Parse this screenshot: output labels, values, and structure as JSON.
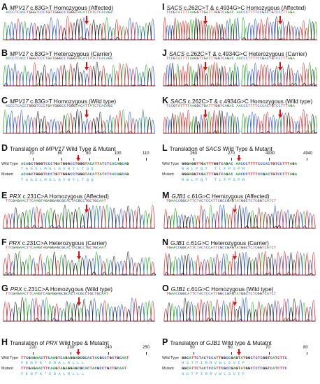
{
  "panels": [
    {
      "letter": "A",
      "gene": "MPV17",
      "rest": " c.83G>T Homozygous (Affected)",
      "seq": "ACCCTCACCTGGGTCCCTGTTGGGCCTGGGTACATTATCTCACAGC"
    },
    {
      "letter": "B",
      "gene": "MPV17",
      "rest": " c.83G>T Heterozygous (Carrier)",
      "seq": "ACCCTCACCTGGGTCCCTGATGGGCCTGGGTACATTATCTCACAGC"
    },
    {
      "letter": "C",
      "gene": "MPV17",
      "rest": " c.83G>T Homozygous (Wild type)",
      "seq": "ACCCTCACCTGGGTCCCTGATGGGCCTGGGTACATTATCTCACAGC"
    },
    {
      "letter": "E",
      "gene": "PRX",
      "rest": " c.231C>A Homozygous (Affected)",
      "seq": "TTCGAGAACTTCAAGTAGAGGAGCGCACTACGCCTGCTGCAAT"
    },
    {
      "letter": "F",
      "gene": "PRX",
      "rest": " c.231C>A  Heterozygous (Carrier)",
      "seq": "TTCGAGAACTTCAAGTAGAGGAGCGCACTACGCCTGCTGCAAT"
    },
    {
      "letter": "G",
      "gene": "PRX",
      "rest": " c.231C>A  Homozygous (Wild type)",
      "seq": "TTCGAGAACTTCAAGTCAGAGGAGCGCACTACGCCTGCTGCAAT"
    },
    {
      "letter": "I",
      "gene": "SACS",
      "rest": " c.262C>T & c.4934G>C Homozygous (Affected)",
      "seq": "TCCGTATTTTAAGGTTGATTTGGTCAGAC   AACCCTTTTCCGACTGTCCTTTAGA"
    },
    {
      "letter": "J",
      "gene": "SACS",
      "rest": " c.262C>T & c.4934G>C  Heterozygous (Carrier)",
      "seq": "TCCGTATTTTAAGGTTGATTTGGTCAGAC   AACCCTTTTCCGACTGTCCTTTAGA"
    },
    {
      "letter": "K",
      "gene": "SACS",
      "rest": " c.262C>T & c.4934G>C Homozygous (Wild type)",
      "seq": "TCCGTATTTTAAGGCTGATTTGGTCAGAC   AACCCTTTTCCCACTGTCCTTTAGA"
    },
    {
      "letter": "M",
      "gene": "GJB1",
      "rest": " c.61G>C Hemizygous (Affected)",
      "seq": "TGAACCGGCATTCTACTCCATTCGCCGAGTATGGCTCTCGGTCATCT"
    },
    {
      "letter": "N",
      "gene": "GJB1",
      "rest": " c.61G>C  Heterozygous (Carrier)",
      "seq": "TGAACCGGCATTCTACTCCATTCGCCGAGTATGGCTCTCGGTCATCT"
    },
    {
      "letter": "O",
      "gene": "GJB1",
      "rest": " c.61G>C Homozygous (Wild type)",
      "seq": "TGAACCGGCATTCTACTCCATTGGCCGAGTATGGCTCTCGGTCATCT"
    }
  ],
  "translations": [
    {
      "letter": "D",
      "prefix": "Translation of ",
      "gene": "MPV17",
      "suffix": " Wild Type & Mutant",
      "ticks": [
        "70",
        "80",
        "90",
        "100",
        "110"
      ],
      "wt_label": "Wild Type",
      "wt_seq": "ACAGCTGGGTCCCTGATGGGCCTGGGTACATTATCTCACAGCAG",
      "mut_label": "Mutant",
      "mut_seq": "ACAGCTGGGTCCCTGTTGGGCCTGGGTACATTATCTCACAGCAG",
      "aa": "TAGSLMGLGVHYLTQQ"
    },
    {
      "letter": "H",
      "prefix": "Translation of ",
      "gene": "PRX",
      "suffix": " Wild type & Mutatnt",
      "ticks": [
        "220",
        "230",
        "240",
        "250"
      ],
      "wt_label": "Wild Type",
      "wt_seq": "TTCGAGAACTTCAAGTCAGAGGAGCGCACTACGCCTGCTGCAAT",
      "mut_label": "Mutant",
      "mut_seq": "TTCGAGAACTTCAAGTAGAGGAGCGCACTACGCCTGCTGCAAT",
      "aa": "FENFK*EDALRLLL"
    },
    {
      "letter": "L",
      "prefix": "Translation of ",
      "gene": "SACS",
      "suffix": " Wild Type & Mutant",
      "ticks": [
        "260",
        "270",
        "4930",
        "4940"
      ],
      "wt_label": "Wild Type",
      "wt_seq": "GGGAGGTTGATTTGGTCAGAC  AACCCTTTTCCCACTGTCCTTTAGA",
      "mut_label": "Mutant",
      "mut_seq": "GGGAGGTCGATTTGGTCAGAC  AACCCTTTTCCGACTGTCCTTTAGA",
      "aa": "RWLPQT  TLFPSPR"
    },
    {
      "letter": "P",
      "prefix": "Translation of ",
      "gene": "GJB1",
      "suffix": " Wild type & Mutatnt",
      "ticks": [
        "50",
        "60",
        "70",
        "80"
      ],
      "wt_label": "Wild Type",
      "wt_seq": "GGCATTCTACTCCATTGGCCGAGTATGGCTCTCGGTCATCTTC",
      "mut_label": "Mutant",
      "mut_seq": "GGCATTCTACTCCATTCGCCGAGTATGGCTCTCGGTCATCTTC",
      "aa": "HSTPIRRVWLSVIF"
    }
  ],
  "colors": {
    "A": "#1aa81a",
    "C": "#1f4fe0",
    "G": "#111111",
    "T": "#e02020",
    "arrow": "#e01010"
  }
}
